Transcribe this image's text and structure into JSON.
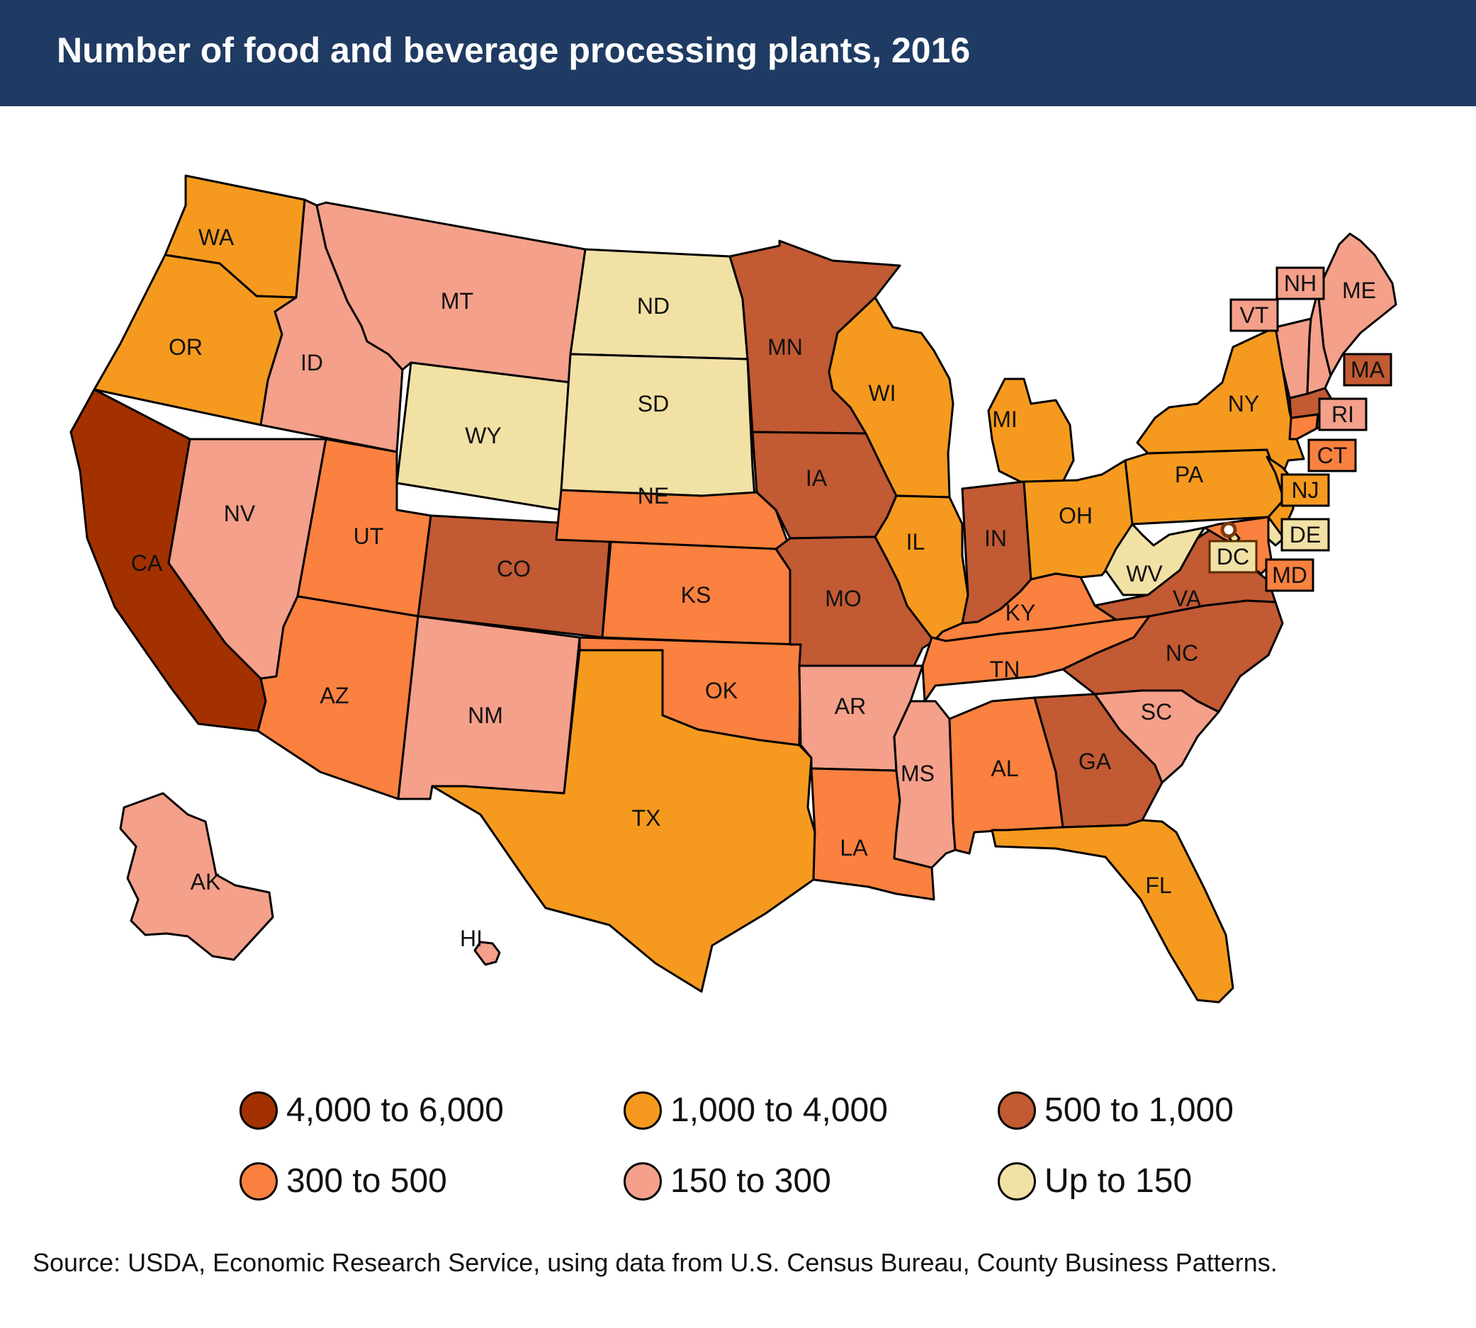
{
  "title": "Number of food and beverage processing plants, 2016",
  "source": "Source: USDA, Economic Research Service, using data from U.S. Census Bureau, County Business Patterns.",
  "legend": [
    {
      "label": "4,000 to 6,000",
      "color": "#a33100"
    },
    {
      "label": "1,000 to 4,000",
      "color": "#f59a1e"
    },
    {
      "label": "500 to 1,000",
      "color": "#c25a33"
    },
    {
      "label": "300 to 500",
      "color": "#fa813f"
    },
    {
      "label": "150 to 300",
      "color": "#f4a08a"
    },
    {
      "label": "Up to 150",
      "color": "#f1e1a4"
    }
  ],
  "states": [
    {
      "abbr": "WA",
      "range": "1,000 to 4,000"
    },
    {
      "abbr": "OR",
      "range": "1,000 to 4,000"
    },
    {
      "abbr": "CA",
      "range": "4,000 to 6,000"
    },
    {
      "abbr": "ID",
      "range": "150 to 300"
    },
    {
      "abbr": "NV",
      "range": "150 to 300"
    },
    {
      "abbr": "MT",
      "range": "150 to 300"
    },
    {
      "abbr": "WY",
      "range": "Up to 150"
    },
    {
      "abbr": "UT",
      "range": "300 to 500"
    },
    {
      "abbr": "AZ",
      "range": "300 to 500"
    },
    {
      "abbr": "CO",
      "range": "500 to 1,000"
    },
    {
      "abbr": "NM",
      "range": "150 to 300"
    },
    {
      "abbr": "ND",
      "range": "Up to 150"
    },
    {
      "abbr": "SD",
      "range": "Up to 150"
    },
    {
      "abbr": "NE",
      "range": "300 to 500"
    },
    {
      "abbr": "KS",
      "range": "300 to 500"
    },
    {
      "abbr": "OK",
      "range": "300 to 500"
    },
    {
      "abbr": "TX",
      "range": "1,000 to 4,000"
    },
    {
      "abbr": "MN",
      "range": "500 to 1,000"
    },
    {
      "abbr": "IA",
      "range": "500 to 1,000"
    },
    {
      "abbr": "MO",
      "range": "500 to 1,000"
    },
    {
      "abbr": "AR",
      "range": "150 to 300"
    },
    {
      "abbr": "LA",
      "range": "300 to 500"
    },
    {
      "abbr": "WI",
      "range": "1,000 to 4,000"
    },
    {
      "abbr": "IL",
      "range": "1,000 to 4,000"
    },
    {
      "abbr": "MI",
      "range": "1,000 to 4,000"
    },
    {
      "abbr": "IN",
      "range": "500 to 1,000"
    },
    {
      "abbr": "OH",
      "range": "1,000 to 4,000"
    },
    {
      "abbr": "KY",
      "range": "300 to 500"
    },
    {
      "abbr": "TN",
      "range": "300 to 500"
    },
    {
      "abbr": "MS",
      "range": "150 to 300"
    },
    {
      "abbr": "AL",
      "range": "300 to 500"
    },
    {
      "abbr": "GA",
      "range": "500 to 1,000"
    },
    {
      "abbr": "FL",
      "range": "1,000 to 4,000"
    },
    {
      "abbr": "SC",
      "range": "150 to 300"
    },
    {
      "abbr": "NC",
      "range": "500 to 1,000"
    },
    {
      "abbr": "VA",
      "range": "500 to 1,000"
    },
    {
      "abbr": "WV",
      "range": "Up to 150"
    },
    {
      "abbr": "PA",
      "range": "1,000 to 4,000"
    },
    {
      "abbr": "NY",
      "range": "1,000 to 4,000"
    },
    {
      "abbr": "NJ",
      "range": "1,000 to 4,000"
    },
    {
      "abbr": "DE",
      "range": "Up to 150"
    },
    {
      "abbr": "MD",
      "range": "300 to 500"
    },
    {
      "abbr": "DC",
      "range": "Up to 150"
    },
    {
      "abbr": "CT",
      "range": "300 to 500"
    },
    {
      "abbr": "RI",
      "range": "150 to 300"
    },
    {
      "abbr": "MA",
      "range": "500 to 1,000"
    },
    {
      "abbr": "VT",
      "range": "150 to 300"
    },
    {
      "abbr": "NH",
      "range": "150 to 300"
    },
    {
      "abbr": "ME",
      "range": "150 to 300"
    },
    {
      "abbr": "AK",
      "range": "150 to 300"
    },
    {
      "abbr": "HI",
      "range": "150 to 300"
    }
  ]
}
